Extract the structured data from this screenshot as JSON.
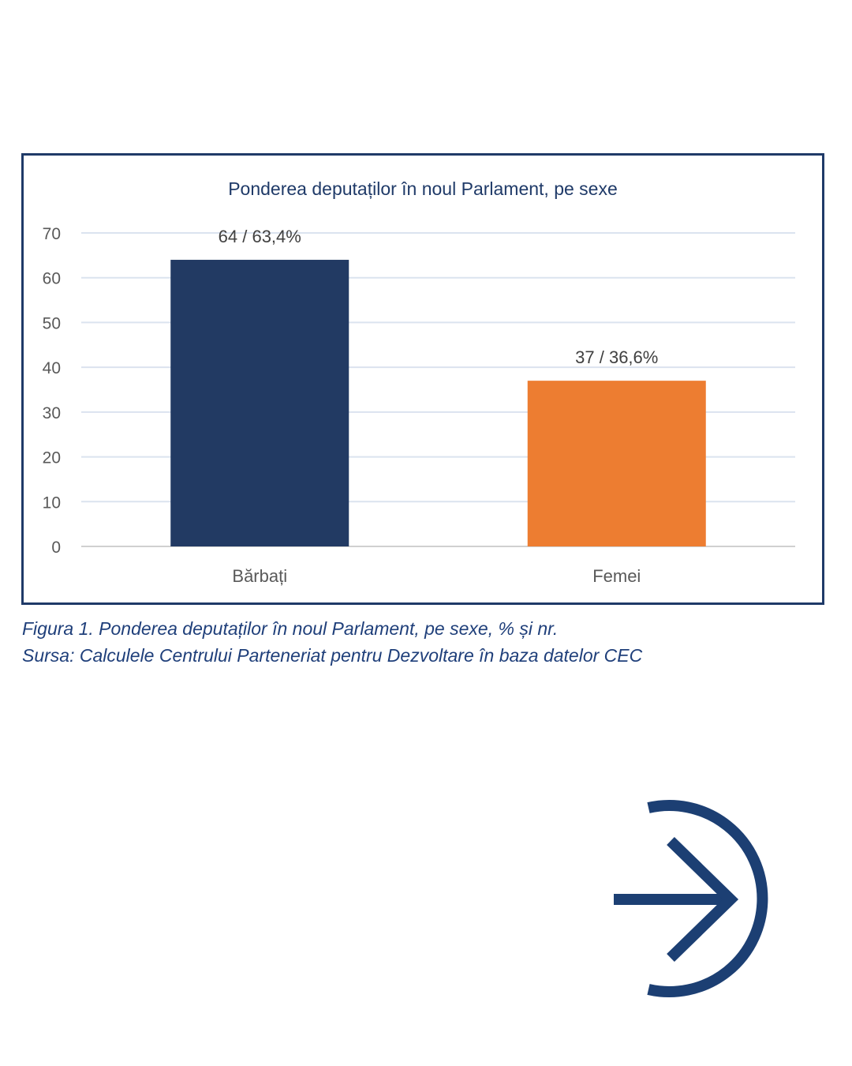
{
  "caption": {
    "figure": "Figura 1. Ponderea deputaților în noul Parlament, pe sexe, % și nr.",
    "source": "Sursa: Calculele Centrului Parteneriat pentru Dezvoltare în baza datelor CEC"
  },
  "navigation": {
    "next_icon": "arrow-right-circle-icon",
    "color": "#1c3f73"
  },
  "chart_data": {
    "type": "bar",
    "title": "Ponderea deputaților în noul Parlament, pe sexe",
    "categories": [
      "Bărbați",
      "Femei"
    ],
    "values": [
      64,
      37
    ],
    "data_labels": [
      "64 / 63,4%",
      "37 / 36,6%"
    ],
    "colors": [
      "#223a63",
      "#ed7d31"
    ],
    "ylim": [
      0,
      70
    ],
    "yticks": [
      0,
      10,
      20,
      30,
      40,
      50,
      60,
      70
    ],
    "grid": true,
    "legend": "none",
    "xlabel": "",
    "ylabel": ""
  }
}
